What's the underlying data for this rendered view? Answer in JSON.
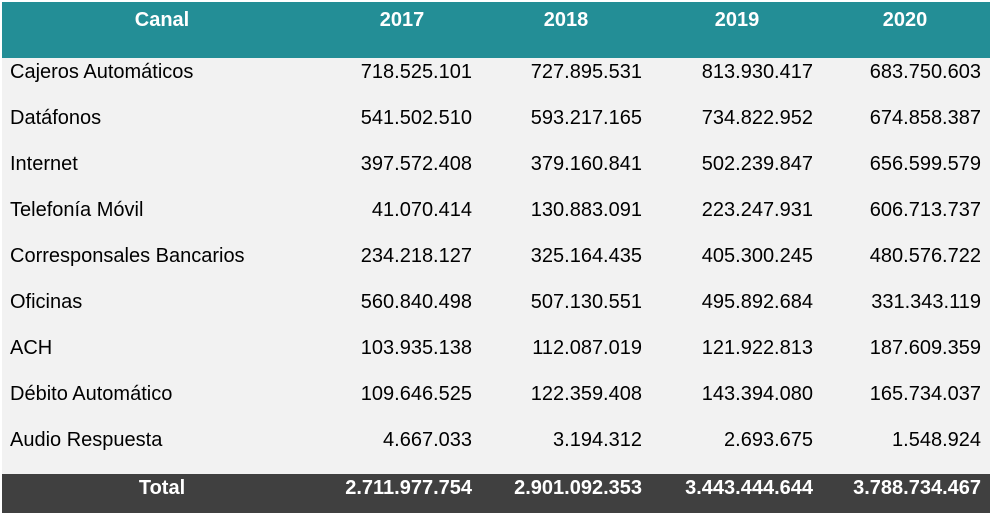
{
  "header": {
    "columns": [
      "Canal",
      "2017",
      "2018",
      "2019",
      "2020"
    ]
  },
  "colors": {
    "header_bg": "#238e96",
    "body_bg": "#f2f2f2",
    "total_bg": "#404040"
  },
  "rows": [
    {
      "canal": "Cajeros Automáticos",
      "values": [
        "718.525.101",
        "727.895.531",
        "813.930.417",
        "683.750.603"
      ]
    },
    {
      "canal": "Datáfonos",
      "values": [
        "541.502.510",
        "593.217.165",
        "734.822.952",
        "674.858.387"
      ]
    },
    {
      "canal": "Internet",
      "values": [
        "397.572.408",
        "379.160.841",
        "502.239.847",
        "656.599.579"
      ]
    },
    {
      "canal": "Telefonía Móvil",
      "values": [
        "41.070.414",
        "130.883.091",
        "223.247.931",
        "606.713.737"
      ]
    },
    {
      "canal": "Corresponsales Bancarios",
      "values": [
        "234.218.127",
        "325.164.435",
        "405.300.245",
        "480.576.722"
      ]
    },
    {
      "canal": "Oficinas",
      "values": [
        "560.840.498",
        "507.130.551",
        "495.892.684",
        "331.343.119"
      ]
    },
    {
      "canal": "ACH",
      "values": [
        "103.935.138",
        "112.087.019",
        "121.922.813",
        "187.609.359"
      ]
    },
    {
      "canal": "Débito Automático",
      "values": [
        "109.646.525",
        "122.359.408",
        "143.394.080",
        "165.734.037"
      ]
    },
    {
      "canal": "Audio Respuesta",
      "values": [
        "4.667.033",
        "3.194.312",
        "2.693.675",
        "1.548.924"
      ]
    }
  ],
  "total": {
    "label": "Total",
    "values": [
      "2.711.977.754",
      "2.901.092.353",
      "3.443.444.644",
      "3.788.734.467"
    ]
  }
}
